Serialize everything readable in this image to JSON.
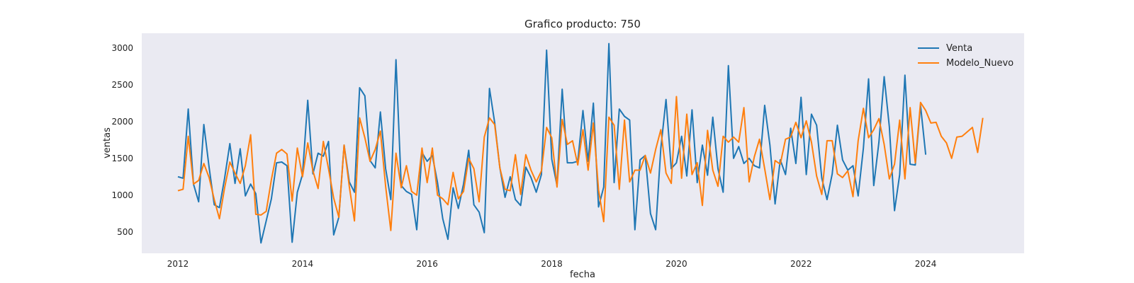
{
  "chart_data": {
    "type": "line",
    "title": "Grafico producto: 750",
    "xlabel": "fecha",
    "ylabel": "ventas",
    "xlim": [
      2011.42,
      2025.58
    ],
    "ylim": [
      210,
      3200
    ],
    "x_ticks": [
      2012,
      2014,
      2016,
      2018,
      2020,
      2022,
      2024
    ],
    "y_ticks": [
      500,
      1000,
      1500,
      2000,
      2500,
      3000
    ],
    "grid": false,
    "legend_position": "top-right",
    "x_start_year": 2012,
    "series": [
      {
        "name": "Venta",
        "color": "#1f77b4",
        "values": [
          1250,
          1230,
          2170,
          1150,
          910,
          1960,
          1380,
          870,
          830,
          1230,
          1700,
          1160,
          1630,
          990,
          1150,
          1020,
          350,
          650,
          950,
          1440,
          1450,
          1400,
          360,
          1040,
          1280,
          2290,
          1290,
          1570,
          1530,
          1730,
          460,
          700,
          1680,
          1180,
          1040,
          2460,
          2350,
          1470,
          1370,
          2130,
          1360,
          940,
          2840,
          1130,
          1050,
          1010,
          530,
          1580,
          1460,
          1540,
          1170,
          680,
          400,
          1100,
          820,
          1150,
          1610,
          870,
          770,
          490,
          2450,
          1990,
          1370,
          970,
          1250,
          940,
          860,
          1380,
          1240,
          1040,
          1280,
          2970,
          1490,
          1130,
          2440,
          1440,
          1440,
          1460,
          2150,
          1460,
          2250,
          840,
          1110,
          3060,
          1170,
          2170,
          2070,
          2020,
          530,
          1480,
          1540,
          750,
          530,
          1640,
          2300,
          1360,
          1440,
          1800,
          1260,
          2160,
          1170,
          1680,
          1270,
          2060,
          1360,
          1040,
          2760,
          1500,
          1660,
          1430,
          1500,
          1400,
          1370,
          2220,
          1680,
          880,
          1480,
          1280,
          1910,
          1430,
          2330,
          1280,
          2100,
          1950,
          1230,
          940,
          1290,
          1950,
          1480,
          1340,
          1400,
          990,
          1640,
          2580,
          1130,
          1720,
          2610,
          1930,
          790,
          1280,
          2630,
          1420,
          1410,
          2220,
          1550
        ],
        "start_index": 0
      },
      {
        "name": "Modelo_Nuevo",
        "color": "#ff7f0e",
        "values": [
          1060,
          1080,
          1800,
          1150,
          1200,
          1430,
          1240,
          940,
          680,
          1100,
          1450,
          1300,
          1160,
          1400,
          1820,
          740,
          730,
          780,
          1210,
          1570,
          1620,
          1560,
          920,
          1640,
          1250,
          1710,
          1330,
          1090,
          1730,
          1360,
          960,
          700,
          1680,
          1120,
          650,
          2050,
          1780,
          1460,
          1620,
          1870,
          1120,
          520,
          1570,
          1100,
          1400,
          1050,
          1000,
          1640,
          1170,
          1640,
          1000,
          950,
          870,
          1310,
          950,
          1050,
          1500,
          1360,
          910,
          1790,
          2050,
          1960,
          1370,
          1080,
          1060,
          1550,
          1010,
          1550,
          1340,
          1180,
          1330,
          1920,
          1780,
          1110,
          2030,
          1690,
          1740,
          1410,
          1890,
          1340,
          1980,
          1070,
          640,
          2060,
          1950,
          1080,
          2020,
          1180,
          1340,
          1340,
          1540,
          1300,
          1620,
          1890,
          1300,
          1160,
          2340,
          1230,
          2100,
          1280,
          1440,
          860,
          1880,
          1340,
          1120,
          1800,
          1720,
          1790,
          1720,
          2190,
          1180,
          1520,
          1760,
          1360,
          940,
          1470,
          1420,
          1760,
          1790,
          1990,
          1780,
          2010,
          1720,
          1260,
          1010,
          1740,
          1740,
          1290,
          1240,
          1330,
          980,
          1740,
          2180,
          1780,
          1890,
          2040,
          1690,
          1220,
          1420,
          2020,
          1220,
          2190,
          1440,
          2260,
          2150,
          1980,
          1990,
          1800,
          1710,
          1500,
          1790,
          1800,
          1860,
          1920,
          1580,
          2050
        ],
        "start_index": 0
      }
    ]
  }
}
